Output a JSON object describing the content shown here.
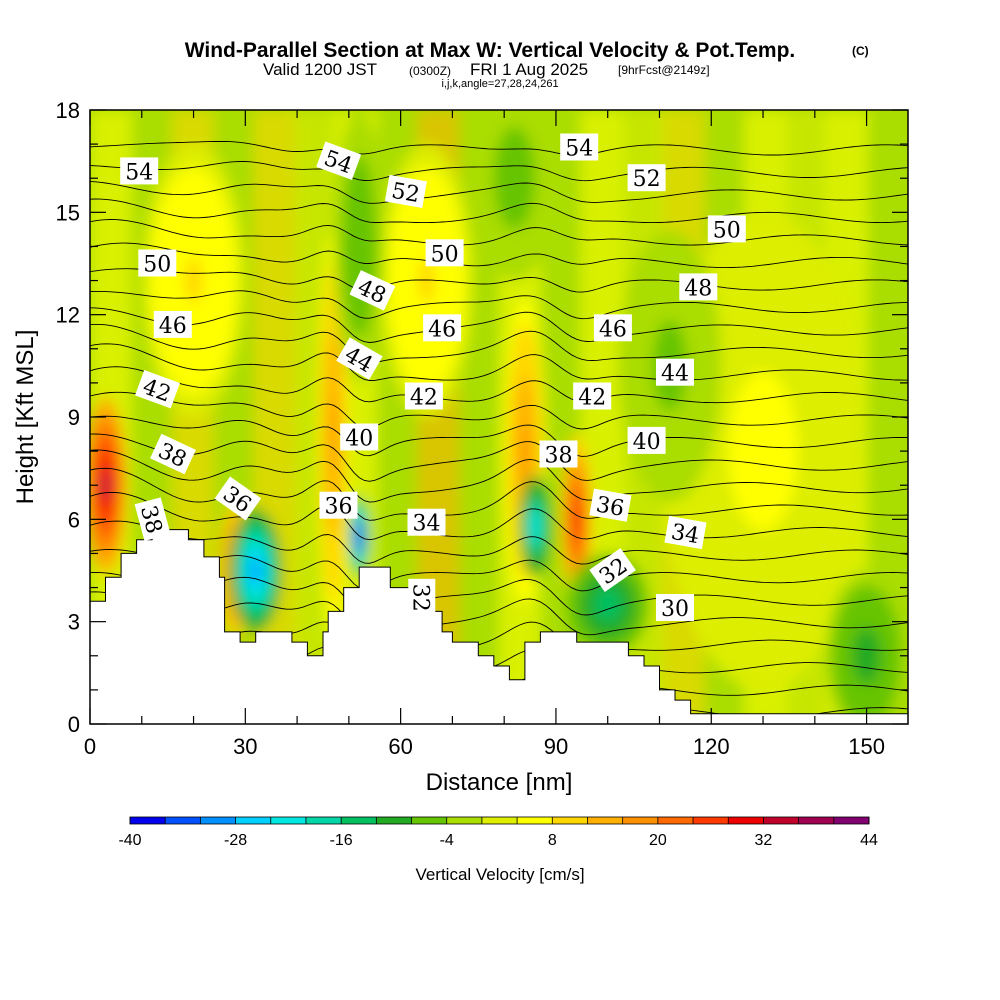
{
  "header": {
    "title": "Wind-Parallel Section at Max W: Vertical Velocity & Pot.Temp.",
    "copyright": "(C)",
    "valid_prefix": "Valid 1200 JST",
    "valid_utc": "(0300Z)",
    "valid_date": "FRI 1 Aug 2025",
    "forecast": "[9hrFcst@2149z]",
    "indices": "i,j,k,angle=27,28,24,261"
  },
  "chart_data": {
    "type": "heatmap",
    "xlabel": "Distance [nm]",
    "ylabel": "Height [Kft MSL]",
    "xlim": [
      0,
      158
    ],
    "ylim": [
      0,
      18
    ],
    "x_ticks": [
      "0",
      "30",
      "60",
      "90",
      "120",
      "150"
    ],
    "y_ticks": [
      "0",
      "3",
      "6",
      "9",
      "12",
      "15",
      "18"
    ],
    "x_tick_values": [
      0,
      30,
      60,
      90,
      120,
      150
    ],
    "y_tick_values": [
      0,
      3,
      6,
      9,
      12,
      15,
      18
    ],
    "colorbar": {
      "label": "Vertical Velocity [cm/s]",
      "min": -40,
      "max": 44,
      "step": 4,
      "tick_labels": [
        "-40",
        "-28",
        "-16",
        "-4",
        "8",
        "20",
        "32",
        "44"
      ],
      "colors": [
        "#0000ee",
        "#0050ff",
        "#0090ff",
        "#00d0ff",
        "#00e8e0",
        "#00d6a6",
        "#00c060",
        "#22aa22",
        "#66c400",
        "#aadd00",
        "#ddee00",
        "#ffff00",
        "#ffd700",
        "#ffb000",
        "#ff9000",
        "#ff6a00",
        "#ff3a00",
        "#ee0000",
        "#c0002a",
        "#a00050",
        "#800070"
      ]
    },
    "terrain": [
      [
        0,
        3.6
      ],
      [
        3,
        3.6
      ],
      [
        3,
        4.3
      ],
      [
        6,
        4.3
      ],
      [
        6,
        5.0
      ],
      [
        9,
        5.0
      ],
      [
        9,
        5.4
      ],
      [
        12,
        5.4
      ],
      [
        12,
        5.7
      ],
      [
        19,
        5.7
      ],
      [
        19,
        5.4
      ],
      [
        22,
        5.4
      ],
      [
        22,
        4.9
      ],
      [
        25,
        4.9
      ],
      [
        25,
        4.3
      ],
      [
        26,
        4.3
      ],
      [
        26,
        2.7
      ],
      [
        29,
        2.7
      ],
      [
        29,
        2.4
      ],
      [
        32,
        2.4
      ],
      [
        32,
        2.7
      ],
      [
        39,
        2.7
      ],
      [
        39,
        2.4
      ],
      [
        42,
        2.4
      ],
      [
        42,
        2.0
      ],
      [
        45,
        2.0
      ],
      [
        45,
        2.7
      ],
      [
        46,
        2.7
      ],
      [
        46,
        3.3
      ],
      [
        49,
        3.3
      ],
      [
        49,
        4.0
      ],
      [
        52,
        4.0
      ],
      [
        52,
        4.6
      ],
      [
        58,
        4.6
      ],
      [
        58,
        4.0
      ],
      [
        62,
        4.0
      ],
      [
        62,
        3.6
      ],
      [
        65,
        3.6
      ],
      [
        65,
        3.3
      ],
      [
        68,
        3.3
      ],
      [
        68,
        2.7
      ],
      [
        70,
        2.7
      ],
      [
        70,
        2.4
      ],
      [
        75,
        2.4
      ],
      [
        75,
        2.0
      ],
      [
        78,
        2.0
      ],
      [
        78,
        1.7
      ],
      [
        81,
        1.7
      ],
      [
        81,
        1.3
      ],
      [
        84,
        1.3
      ],
      [
        84,
        2.4
      ],
      [
        87,
        2.4
      ],
      [
        87,
        2.7
      ],
      [
        94,
        2.7
      ],
      [
        94,
        2.4
      ],
      [
        104,
        2.4
      ],
      [
        104,
        2.0
      ],
      [
        107,
        2.0
      ],
      [
        107,
        1.7
      ],
      [
        110,
        1.7
      ],
      [
        110,
        1.0
      ],
      [
        113,
        1.0
      ],
      [
        113,
        0.7
      ],
      [
        116,
        0.7
      ],
      [
        116,
        0.3
      ],
      [
        158,
        0.3
      ]
    ],
    "updrafts": [
      {
        "x": 3,
        "y": 7.0,
        "w": 4,
        "h": 2.6,
        "peak": 36
      },
      {
        "x": 47,
        "y": 8.5,
        "w": 3,
        "h": 6.0,
        "peak": 18
      },
      {
        "x": 84,
        "y": 8.0,
        "w": 4,
        "h": 4.5,
        "peak": 16
      },
      {
        "x": 94,
        "y": 6.0,
        "w": 3,
        "h": 2.5,
        "peak": 28
      },
      {
        "x": 28,
        "y": 4.5,
        "w": 3,
        "h": 2.0,
        "peak": 24
      },
      {
        "x": 20,
        "y": 13.0,
        "w": 10,
        "h": 4.0,
        "peak": 8
      },
      {
        "x": 65,
        "y": 13.0,
        "w": 9,
        "h": 4.0,
        "peak": 8
      },
      {
        "x": 130,
        "y": 8.0,
        "w": 20,
        "h": 7.0,
        "peak": 5
      }
    ],
    "downdrafts": [
      {
        "x": 32,
        "y": 4.5,
        "w": 5,
        "h": 1.8,
        "peak": -30
      },
      {
        "x": 52,
        "y": 5.5,
        "w": 2,
        "h": 1.2,
        "peak": -38
      },
      {
        "x": 86,
        "y": 5.8,
        "w": 3,
        "h": 1.5,
        "peak": -24
      },
      {
        "x": 100,
        "y": 3.5,
        "w": 8,
        "h": 1.5,
        "peak": -14
      },
      {
        "x": 52,
        "y": 14.0,
        "w": 5,
        "h": 4.0,
        "peak": -8
      },
      {
        "x": 82,
        "y": 16.0,
        "w": 8,
        "h": 3.0,
        "peak": -6
      },
      {
        "x": 150,
        "y": 2.0,
        "w": 8,
        "h": 2.5,
        "peak": -10
      },
      {
        "x": 112,
        "y": 10.5,
        "w": 10,
        "h": 4.0,
        "peak": -5
      }
    ],
    "theta_contours": {
      "levels_from": 30,
      "levels_to": 55,
      "step": 1
    },
    "contour_labels": [
      {
        "text": "54",
        "x": 9.5,
        "y": 16.2,
        "angle": 0
      },
      {
        "text": "54",
        "x": 48,
        "y": 16.5,
        "angle": 20
      },
      {
        "text": "54",
        "x": 94.5,
        "y": 16.9,
        "angle": 0
      },
      {
        "text": "52",
        "x": 61,
        "y": 15.6,
        "angle": 10
      },
      {
        "text": "52",
        "x": 107.5,
        "y": 16.0,
        "angle": 0
      },
      {
        "text": "50",
        "x": 13,
        "y": 13.5,
        "angle": 0
      },
      {
        "text": "50",
        "x": 68.5,
        "y": 13.8,
        "angle": 0
      },
      {
        "text": "50",
        "x": 123,
        "y": 14.5,
        "angle": 0
      },
      {
        "text": "48",
        "x": 54.5,
        "y": 12.7,
        "angle": 25
      },
      {
        "text": "48",
        "x": 117.5,
        "y": 12.8,
        "angle": 0
      },
      {
        "text": "46",
        "x": 16,
        "y": 11.7,
        "angle": 0
      },
      {
        "text": "46",
        "x": 68,
        "y": 11.6,
        "angle": 0
      },
      {
        "text": "46",
        "x": 101,
        "y": 11.6,
        "angle": 0
      },
      {
        "text": "44",
        "x": 52,
        "y": 10.7,
        "angle": 30
      },
      {
        "text": "44",
        "x": 113,
        "y": 10.3,
        "angle": 0
      },
      {
        "text": "42",
        "x": 13,
        "y": 9.8,
        "angle": 20
      },
      {
        "text": "42",
        "x": 64.5,
        "y": 9.6,
        "angle": 0
      },
      {
        "text": "42",
        "x": 97,
        "y": 9.6,
        "angle": 0
      },
      {
        "text": "40",
        "x": 52,
        "y": 8.4,
        "angle": 0
      },
      {
        "text": "40",
        "x": 107.5,
        "y": 8.3,
        "angle": 0
      },
      {
        "text": "38",
        "x": 16,
        "y": 7.9,
        "angle": 25
      },
      {
        "text": "38",
        "x": 90.5,
        "y": 7.9,
        "angle": 0
      },
      {
        "text": "38",
        "x": 12,
        "y": 6.0,
        "angle": 75
      },
      {
        "text": "36",
        "x": 28.5,
        "y": 6.6,
        "angle": 35
      },
      {
        "text": "36",
        "x": 48,
        "y": 6.4,
        "angle": 0
      },
      {
        "text": "36",
        "x": 100.5,
        "y": 6.4,
        "angle": 10
      },
      {
        "text": "34",
        "x": 65,
        "y": 5.9,
        "angle": 0
      },
      {
        "text": "34",
        "x": 115,
        "y": 5.6,
        "angle": 10
      },
      {
        "text": "32",
        "x": 64,
        "y": 3.7,
        "angle": 90
      },
      {
        "text": "32",
        "x": 101,
        "y": 4.5,
        "angle": -35
      },
      {
        "text": "30",
        "x": 113,
        "y": 3.4,
        "angle": 0
      }
    ]
  }
}
